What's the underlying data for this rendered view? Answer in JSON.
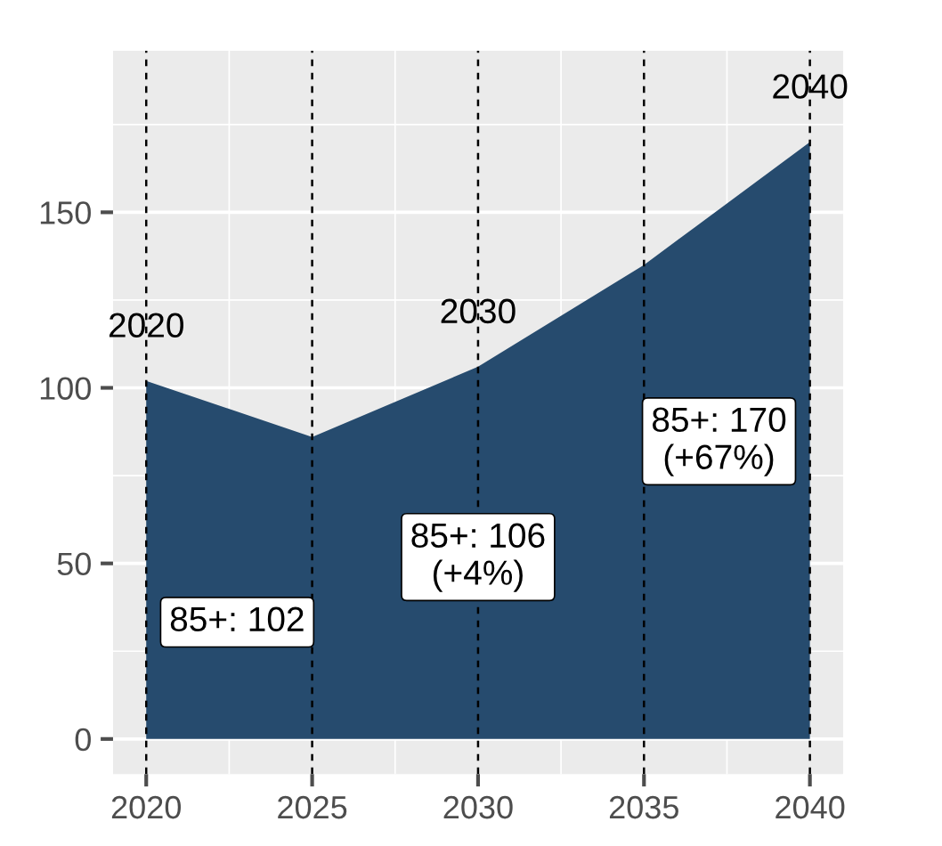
{
  "chart_data": {
    "type": "area",
    "x": [
      2020,
      2025,
      2030,
      2035,
      2040
    ],
    "series": [
      {
        "color": "#264b6e",
        "values": [
          102,
          86,
          106,
          135,
          170
        ]
      }
    ],
    "xlim": [
      2019,
      2041
    ],
    "xticks": [
      2020,
      2025,
      2030,
      2035,
      2040
    ],
    "ylim": [
      -10,
      196
    ],
    "yticks": [
      0,
      50,
      100,
      150
    ],
    "grid": true,
    "ref_lines": [
      {
        "axis": "x",
        "value": 2020,
        "label": "2020",
        "line_style": "dashed",
        "color": "#000000"
      },
      {
        "axis": "x",
        "value": 2025,
        "label": null,
        "line_style": "dashed",
        "color": "#000000"
      },
      {
        "axis": "x",
        "value": 2030,
        "label": "2030",
        "line_style": "dashed",
        "color": "#000000"
      },
      {
        "axis": "x",
        "value": 2035,
        "label": null,
        "line_style": "dashed",
        "color": "#000000"
      },
      {
        "axis": "x",
        "value": 2040,
        "label": "2040",
        "line_style": "dashed",
        "color": "#000000"
      }
    ],
    "annotations": [
      "85+: 102",
      "85+: 106\n(+4%)",
      "85+: 170\n(+67%)"
    ]
  }
}
